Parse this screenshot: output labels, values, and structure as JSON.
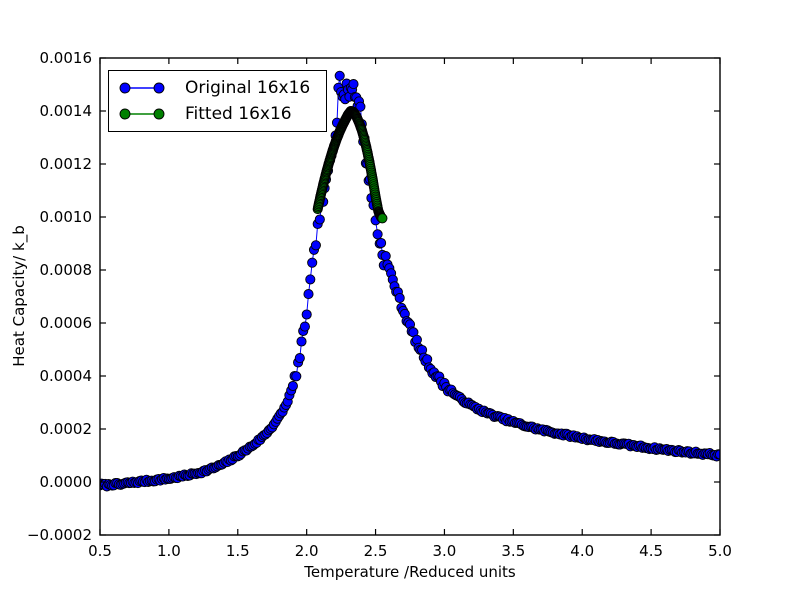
{
  "figure": {
    "background": "#ffffff",
    "frame_color": "#000000",
    "tick_color": "#000000",
    "tick_label_color": "#000000"
  },
  "chart_data": {
    "type": "line",
    "title": "",
    "xlabel": "Temperature /Reduced units",
    "ylabel": "Heat Capacity/ k_b",
    "xlim": [
      0.5,
      5.0
    ],
    "ylim": [
      -0.0002,
      0.0016
    ],
    "grid": false,
    "x_ticks": [
      0.5,
      1.0,
      1.5,
      2.0,
      2.5,
      3.0,
      3.5,
      4.0,
      4.5,
      5.0
    ],
    "x_tick_labels": [
      "0.5",
      "1.0",
      "1.5",
      "2.0",
      "2.5",
      "3.0",
      "3.5",
      "4.0",
      "4.5",
      "5.0"
    ],
    "y_ticks": [
      -0.0002,
      0.0,
      0.0002,
      0.0004,
      0.0006,
      0.0008,
      0.001,
      0.0012,
      0.0014,
      0.0016
    ],
    "y_tick_labels": [
      "−0.0002",
      "0.0000",
      "0.0002",
      "0.0004",
      "0.0006",
      "0.0008",
      "0.0010",
      "0.0012",
      "0.0014",
      "0.0016"
    ],
    "legend": {
      "position": "upper-left"
    },
    "series": [
      {
        "name": "Original 16x16",
        "color": "#0000ff",
        "marker": "circle",
        "marker_edge": "#000000",
        "marker_radius": 4.6,
        "line_width": 1,
        "points": [
          [
            0.5,
            -1e-05
          ],
          [
            0.55,
            -1.2e-05
          ],
          [
            0.6,
            -8e-06
          ],
          [
            0.65,
            -1e-05
          ],
          [
            0.7,
            -4e-06
          ],
          [
            0.75,
            -2e-06
          ],
          [
            0.8,
            2e-06
          ],
          [
            0.85,
            4e-06
          ],
          [
            0.9,
            7e-06
          ],
          [
            0.95,
            1e-05
          ],
          [
            1.0,
            1.3e-05
          ],
          [
            1.05,
            1.7e-05
          ],
          [
            1.1,
            2.2e-05
          ],
          [
            1.15,
            2.7e-05
          ],
          [
            1.2,
            3.3e-05
          ],
          [
            1.25,
            4e-05
          ],
          [
            1.3,
            4.8e-05
          ],
          [
            1.35,
            5.8e-05
          ],
          [
            1.4,
            7e-05
          ],
          [
            1.45,
            8.4e-05
          ],
          [
            1.5,
            0.0001
          ],
          [
            1.55,
            0.000117
          ],
          [
            1.6,
            0.000135
          ],
          [
            1.65,
            0.000156
          ],
          [
            1.7,
            0.00018
          ],
          [
            1.75,
            0.00021
          ],
          [
            1.8,
            0.000245
          ],
          [
            1.85,
            0.00029
          ],
          [
            1.9,
            0.00036
          ],
          [
            1.95,
            0.00047
          ],
          [
            2.0,
            0.00064
          ],
          [
            2.04,
            0.00081
          ],
          [
            2.08,
            0.00096
          ],
          [
            2.11,
            0.00104
          ],
          [
            2.14,
            0.00112
          ],
          [
            2.17,
            0.00121
          ],
          [
            2.2,
            0.0013
          ],
          [
            2.22,
            0.00138
          ],
          [
            2.24,
            0.00156
          ],
          [
            2.25,
            0.00148
          ],
          [
            2.27,
            0.00143
          ],
          [
            2.29,
            0.0015
          ],
          [
            2.31,
            0.00146
          ],
          [
            2.33,
            0.00151
          ],
          [
            2.35,
            0.00147
          ],
          [
            2.37,
            0.00144
          ],
          [
            2.39,
            0.0014
          ],
          [
            2.41,
            0.00131
          ],
          [
            2.43,
            0.00123
          ],
          [
            2.45,
            0.00116
          ],
          [
            2.47,
            0.00108
          ],
          [
            2.5,
            0.00099
          ],
          [
            2.53,
            0.00091
          ],
          [
            2.56,
            0.00085
          ],
          [
            2.6,
            0.0008
          ],
          [
            2.65,
            0.000725
          ],
          [
            2.7,
            0.00065
          ],
          [
            2.75,
            0.000585
          ],
          [
            2.8,
            0.000525
          ],
          [
            2.85,
            0.000475
          ],
          [
            2.9,
            0.00043
          ],
          [
            2.95,
            0.000395
          ],
          [
            3.0,
            0.000365
          ],
          [
            3.1,
            0.00032
          ],
          [
            3.2,
            0.000287
          ],
          [
            3.3,
            0.000262
          ],
          [
            3.4,
            0.000243
          ],
          [
            3.5,
            0.000226
          ],
          [
            3.6,
            0.00021
          ],
          [
            3.7,
            0.000197
          ],
          [
            3.8,
            0.000186
          ],
          [
            3.9,
            0.000176
          ],
          [
            4.0,
            0.000166
          ],
          [
            4.1,
            0.000157
          ],
          [
            4.2,
            0.000149
          ],
          [
            4.3,
            0.000142
          ],
          [
            4.4,
            0.000135
          ],
          [
            4.5,
            0.000128
          ],
          [
            4.6,
            0.000122
          ],
          [
            4.7,
            0.000116
          ],
          [
            4.8,
            0.000111
          ],
          [
            4.9,
            0.000106
          ],
          [
            5.0,
            0.0001
          ]
        ],
        "render": {
          "densify_step": 0.012,
          "noise_seed": 7,
          "noise_base": 5e-06,
          "noise_regions": [
            [
              1.9,
              2.13,
              1.8e-05
            ],
            [
              2.13,
              2.6,
              3.3e-05
            ],
            [
              2.6,
              3.05,
              1.2e-05
            ]
          ]
        }
      },
      {
        "name": "Fitted 16x16",
        "color": "#008000",
        "marker": "circle",
        "marker_edge": "#000000",
        "marker_radius": 4.6,
        "line_width": 1,
        "points": [
          [
            2.08,
            0.00103
          ],
          [
            2.1,
            0.001078
          ],
          [
            2.12,
            0.001122
          ],
          [
            2.14,
            0.001163
          ],
          [
            2.16,
            0.001201
          ],
          [
            2.18,
            0.001236
          ],
          [
            2.2,
            0.001268
          ],
          [
            2.22,
            0.001297
          ],
          [
            2.24,
            0.001323
          ],
          [
            2.26,
            0.001346
          ],
          [
            2.28,
            0.001366
          ],
          [
            2.3,
            0.001386
          ],
          [
            2.32,
            0.0014
          ],
          [
            2.34,
            0.001396
          ],
          [
            2.36,
            0.00138
          ],
          [
            2.38,
            0.001357
          ],
          [
            2.4,
            0.001328
          ],
          [
            2.42,
            0.001291
          ],
          [
            2.44,
            0.001247
          ],
          [
            2.46,
            0.001196
          ],
          [
            2.48,
            0.001139
          ],
          [
            2.5,
            0.001077
          ],
          [
            2.52,
            0.001022
          ],
          [
            2.54,
            0.000999
          ],
          [
            2.55,
            0.000995
          ]
        ],
        "render": {
          "densify_step": 0.0025,
          "noise_base": 0
        }
      }
    ]
  }
}
